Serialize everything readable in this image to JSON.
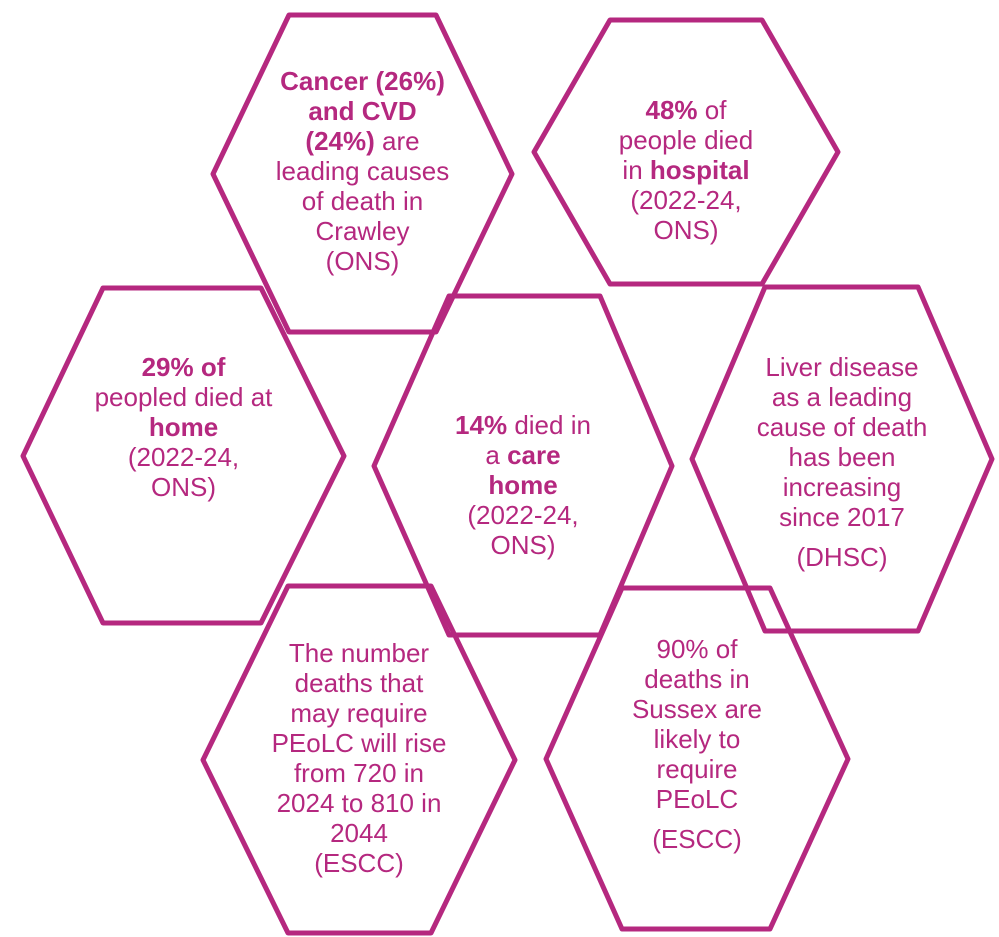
{
  "colors": {
    "accent": "#b5287f",
    "background": "#ffffff"
  },
  "hexagons": [
    {
      "id": "cancer-cvd",
      "lines": [
        [
          {
            "t": "Cancer (26%)",
            "b": true
          }
        ],
        [
          {
            "t": "and CVD",
            "b": true
          }
        ],
        [
          {
            "t": "(24%)",
            "b": true
          },
          {
            "t": " are",
            "b": false
          }
        ],
        [
          {
            "t": "leading causes",
            "b": false
          }
        ],
        [
          {
            "t": "of death in",
            "b": false
          }
        ],
        [
          {
            "t": "Crawley",
            "b": false
          }
        ],
        [
          {
            "t": "(ONS)",
            "b": false
          }
        ]
      ]
    },
    {
      "id": "hospital",
      "lines": [
        [
          {
            "t": "48%",
            "b": true
          },
          {
            "t": " of",
            "b": false
          }
        ],
        [
          {
            "t": "people died",
            "b": false
          }
        ],
        [
          {
            "t": "in ",
            "b": false
          },
          {
            "t": "hospital",
            "b": true
          }
        ],
        [
          {
            "t": "(2022-24,",
            "b": false
          }
        ],
        [
          {
            "t": "ONS)",
            "b": false
          }
        ]
      ]
    },
    {
      "id": "home",
      "lines": [
        [
          {
            "t": "29% of",
            "b": true
          }
        ],
        [
          {
            "t": "peopled died at",
            "b": false
          }
        ],
        [
          {
            "t": "home",
            "b": true
          }
        ],
        [
          {
            "t": "(2022-24,",
            "b": false
          }
        ],
        [
          {
            "t": "ONS)",
            "b": false
          }
        ]
      ]
    },
    {
      "id": "care-home",
      "lines": [
        [
          {
            "t": "14%",
            "b": true
          },
          {
            "t": " died in",
            "b": false
          }
        ],
        [
          {
            "t": "a ",
            "b": false
          },
          {
            "t": "care",
            "b": true
          }
        ],
        [
          {
            "t": "home",
            "b": true
          }
        ],
        [
          {
            "t": "(2022-24,",
            "b": false
          }
        ],
        [
          {
            "t": "ONS)",
            "b": false
          }
        ]
      ]
    },
    {
      "id": "liver",
      "lines": [
        [
          {
            "t": "Liver disease",
            "b": false
          }
        ],
        [
          {
            "t": "as a leading",
            "b": false
          }
        ],
        [
          {
            "t": "cause of death",
            "b": false
          }
        ],
        [
          {
            "t": "has been",
            "b": false
          }
        ],
        [
          {
            "t": "increasing",
            "b": false
          }
        ],
        [
          {
            "t": "since 2017",
            "b": false
          }
        ],
        [
          {
            "t": "(DHSC)",
            "b": false,
            "gap": true
          }
        ]
      ]
    },
    {
      "id": "peolc-rise",
      "lines": [
        [
          {
            "t": "The number",
            "b": false
          }
        ],
        [
          {
            "t": "deaths that",
            "b": false
          }
        ],
        [
          {
            "t": "may  require",
            "b": false
          }
        ],
        [
          {
            "t": "PEoLC will rise",
            "b": false
          }
        ],
        [
          {
            "t": "from 720 in",
            "b": false
          }
        ],
        [
          {
            "t": "2024 to 810 in",
            "b": false
          }
        ],
        [
          {
            "t": "2044",
            "b": false
          }
        ],
        [
          {
            "t": "(ESCC)",
            "b": false
          }
        ]
      ]
    },
    {
      "id": "sussex",
      "lines": [
        [
          {
            "t": "90% of",
            "b": false
          }
        ],
        [
          {
            "t": "deaths in",
            "b": false
          }
        ],
        [
          {
            "t": "Sussex are",
            "b": false
          }
        ],
        [
          {
            "t": "likely to",
            "b": false
          }
        ],
        [
          {
            "t": "require",
            "b": false
          }
        ],
        [
          {
            "t": "PEoLC",
            "b": false
          }
        ],
        [
          {
            "t": "(ESCC)",
            "b": false,
            "gap": true
          }
        ]
      ]
    }
  ]
}
